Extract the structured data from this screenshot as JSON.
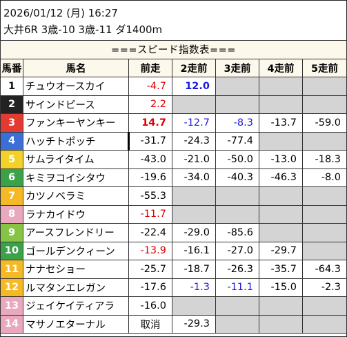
{
  "header": {
    "datetime": "2026/01/12 (月) 16:27",
    "race": "大井6R 3歳-10 3歳-11 ダ1400m"
  },
  "table": {
    "title": "===スピード指数表===",
    "columns": [
      "馬番",
      "馬名",
      "前走",
      "2走前",
      "3走前",
      "4走前",
      "5走前"
    ],
    "rows": [
      {
        "no": "1",
        "no_bg": "#ffffff",
        "no_fg": "#111111",
        "name": "チュウオースカイ",
        "cells": [
          {
            "v": "-4.7",
            "c": "red"
          },
          {
            "v": "12.0",
            "c": "blue",
            "b": true
          },
          {
            "v": ""
          },
          {
            "v": ""
          },
          {
            "v": ""
          }
        ]
      },
      {
        "no": "2",
        "no_bg": "#222222",
        "no_fg": "#ffffff",
        "name": "サインドピース",
        "cells": [
          {
            "v": "2.2",
            "c": "red"
          },
          {
            "v": ""
          },
          {
            "v": ""
          },
          {
            "v": ""
          },
          {
            "v": ""
          }
        ]
      },
      {
        "no": "3",
        "no_bg": "#e33b32",
        "no_fg": "#ffffff",
        "name": "ファンキーヤンキー",
        "cells": [
          {
            "v": "14.7",
            "c": "red",
            "b": true
          },
          {
            "v": "-12.7",
            "c": "blue"
          },
          {
            "v": "-8.3",
            "c": "blue"
          },
          {
            "v": "-13.7"
          },
          {
            "v": "-59.0"
          }
        ]
      },
      {
        "no": "4",
        "no_bg": "#3b6fd6",
        "no_fg": "#ffffff",
        "name": "ハッチトポッチ",
        "cells": [
          {
            "v": "-31.7",
            "bar": true
          },
          {
            "v": "-24.3"
          },
          {
            "v": "-77.4"
          },
          {
            "v": ""
          },
          {
            "v": ""
          }
        ]
      },
      {
        "no": "5",
        "no_bg": "#f2d22a",
        "no_fg": "#ffffff",
        "name": "サムライタイム",
        "cells": [
          {
            "v": "-43.0"
          },
          {
            "v": "-21.0"
          },
          {
            "v": "-50.0"
          },
          {
            "v": "-13.0"
          },
          {
            "v": "-18.3"
          }
        ]
      },
      {
        "no": "6",
        "no_bg": "#3aa34a",
        "no_fg": "#ffffff",
        "name": "キミヲコイシタウ",
        "cells": [
          {
            "v": "-19.6"
          },
          {
            "v": "-34.0"
          },
          {
            "v": "-40.3"
          },
          {
            "v": "-46.3"
          },
          {
            "v": "-8.0"
          }
        ]
      },
      {
        "no": "7",
        "no_bg": "#f5b925",
        "no_fg": "#ffffff",
        "name": "カツノベラミ",
        "cells": [
          {
            "v": "-55.3"
          },
          {
            "v": ""
          },
          {
            "v": ""
          },
          {
            "v": ""
          },
          {
            "v": ""
          }
        ]
      },
      {
        "no": "8",
        "no_bg": "#eaa8bf",
        "no_fg": "#ffffff",
        "name": "ラナカイドウ",
        "cells": [
          {
            "v": "-11.7",
            "c": "red"
          },
          {
            "v": ""
          },
          {
            "v": ""
          },
          {
            "v": ""
          },
          {
            "v": ""
          }
        ]
      },
      {
        "no": "9",
        "no_bg": "#86c443",
        "no_fg": "#ffffff",
        "name": "アースフレンドリー",
        "cells": [
          {
            "v": "-22.4"
          },
          {
            "v": "-29.0"
          },
          {
            "v": "-85.6"
          },
          {
            "v": ""
          },
          {
            "v": ""
          }
        ]
      },
      {
        "no": "10",
        "no_bg": "#3aa34a",
        "no_fg": "#ffffff",
        "name": "ゴールデンクィーン",
        "cells": [
          {
            "v": "-13.9",
            "c": "red"
          },
          {
            "v": "-16.1"
          },
          {
            "v": "-27.0"
          },
          {
            "v": "-29.7"
          },
          {
            "v": ""
          }
        ]
      },
      {
        "no": "11",
        "no_bg": "#f5b925",
        "no_fg": "#ffffff",
        "name": "ナナセショー",
        "cells": [
          {
            "v": "-25.7"
          },
          {
            "v": "-18.7"
          },
          {
            "v": "-26.3"
          },
          {
            "v": "-35.7"
          },
          {
            "v": "-64.3"
          }
        ]
      },
      {
        "no": "12",
        "no_bg": "#f5b925",
        "no_fg": "#ffffff",
        "name": "ルマタンエレガン",
        "cells": [
          {
            "v": "-17.6"
          },
          {
            "v": "-1.3",
            "c": "blue"
          },
          {
            "v": "-11.1",
            "c": "blue"
          },
          {
            "v": "-15.0"
          },
          {
            "v": "-2.3"
          }
        ]
      },
      {
        "no": "13",
        "no_bg": "#eaa8bf",
        "no_fg": "#ffffff",
        "name": "ジェイケイティアラ",
        "cells": [
          {
            "v": "-16.0"
          },
          {
            "v": ""
          },
          {
            "v": ""
          },
          {
            "v": ""
          },
          {
            "v": ""
          }
        ]
      },
      {
        "no": "14",
        "no_bg": "#eaa8bf",
        "no_fg": "#ffffff",
        "name": "マサノエターナル",
        "cells": [
          {
            "v": "取消",
            "center": true
          },
          {
            "v": "-29.3"
          },
          {
            "v": ""
          },
          {
            "v": ""
          },
          {
            "v": ""
          }
        ]
      }
    ]
  }
}
